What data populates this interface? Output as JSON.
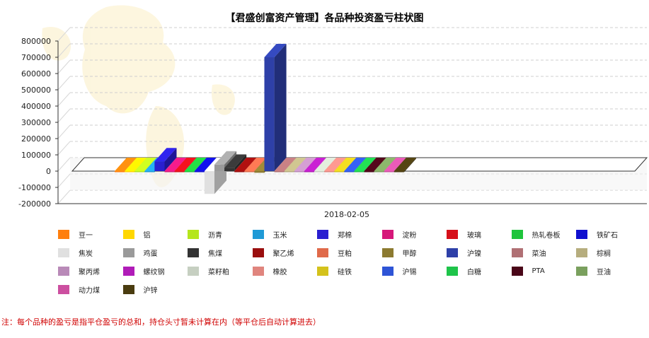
{
  "chart_data": {
    "type": "bar",
    "title": "【君盛创富资产管理】各品种投资盈亏柱状图",
    "categories": [
      "2018-02-05"
    ],
    "ylim": [
      -200000,
      800000
    ],
    "yticks": [
      800000,
      700000,
      600000,
      500000,
      400000,
      300000,
      200000,
      100000,
      0,
      -100000,
      -200000
    ],
    "grid": true,
    "legend_position": "bottom",
    "series": [
      {
        "name": "豆一",
        "color": "#ff7f0e",
        "values": [
          0
        ]
      },
      {
        "name": "铝",
        "color": "#ffd700",
        "values": [
          0
        ]
      },
      {
        "name": "沥青",
        "color": "#b5e61d",
        "values": [
          0
        ]
      },
      {
        "name": "玉米",
        "color": "#1f9ad6",
        "values": [
          0
        ]
      },
      {
        "name": "郑棉",
        "color": "#2a1fd0",
        "values": [
          60000
        ]
      },
      {
        "name": "淀粉",
        "color": "#d6187a",
        "values": [
          0
        ]
      },
      {
        "name": "玻璃",
        "color": "#d6101a",
        "values": [
          0
        ]
      },
      {
        "name": "热轧卷板",
        "color": "#1ec43c",
        "values": [
          0
        ]
      },
      {
        "name": "铁矿石",
        "color": "#1010cf",
        "values": [
          0
        ]
      },
      {
        "name": "焦炭",
        "color": "#e0e0e0",
        "values": [
          -140000
        ]
      },
      {
        "name": "鸡蛋",
        "color": "#9a9a9a",
        "values": [
          40000
        ]
      },
      {
        "name": "焦煤",
        "color": "#333333",
        "values": [
          20000
        ]
      },
      {
        "name": "聚乙烯",
        "color": "#9a0e0e",
        "values": [
          0
        ]
      },
      {
        "name": "豆粕",
        "color": "#e06a4a",
        "values": [
          0
        ]
      },
      {
        "name": "甲醇",
        "color": "#8c7a30",
        "values": [
          -10000
        ]
      },
      {
        "name": "沪镍",
        "color": "#2e40a8",
        "values": [
          700000
        ]
      },
      {
        "name": "菜油",
        "color": "#b07074",
        "values": [
          0
        ]
      },
      {
        "name": "棕榈",
        "color": "#b6ad7e",
        "values": [
          0
        ]
      },
      {
        "name": "聚丙烯",
        "color": "#b98ab8",
        "values": [
          0
        ]
      },
      {
        "name": "螺纹钢",
        "color": "#b01cb8",
        "values": [
          0
        ]
      },
      {
        "name": "菜籽粕",
        "color": "#c6cfc1",
        "values": [
          0
        ]
      },
      {
        "name": "橡胶",
        "color": "#e0857e",
        "values": [
          0
        ]
      },
      {
        "name": "硅铁",
        "color": "#d4c21c",
        "values": [
          0
        ]
      },
      {
        "name": "沪锡",
        "color": "#2e54d6",
        "values": [
          0
        ]
      },
      {
        "name": "白糖",
        "color": "#1ec44a",
        "values": [
          0
        ]
      },
      {
        "name": "PTA",
        "color": "#4a0618",
        "values": [
          -5000
        ]
      },
      {
        "name": "豆油",
        "color": "#7aa05e",
        "values": [
          0
        ]
      },
      {
        "name": "动力煤",
        "color": "#cc4fa0",
        "values": [
          0
        ]
      },
      {
        "name": "沪锌",
        "color": "#4a3c10",
        "values": [
          0
        ]
      }
    ]
  },
  "footnote": "注：每个品种的盈亏是指平仓盈亏的总和，持仓头寸暂未计算在内（等平仓后自动计算进去）"
}
